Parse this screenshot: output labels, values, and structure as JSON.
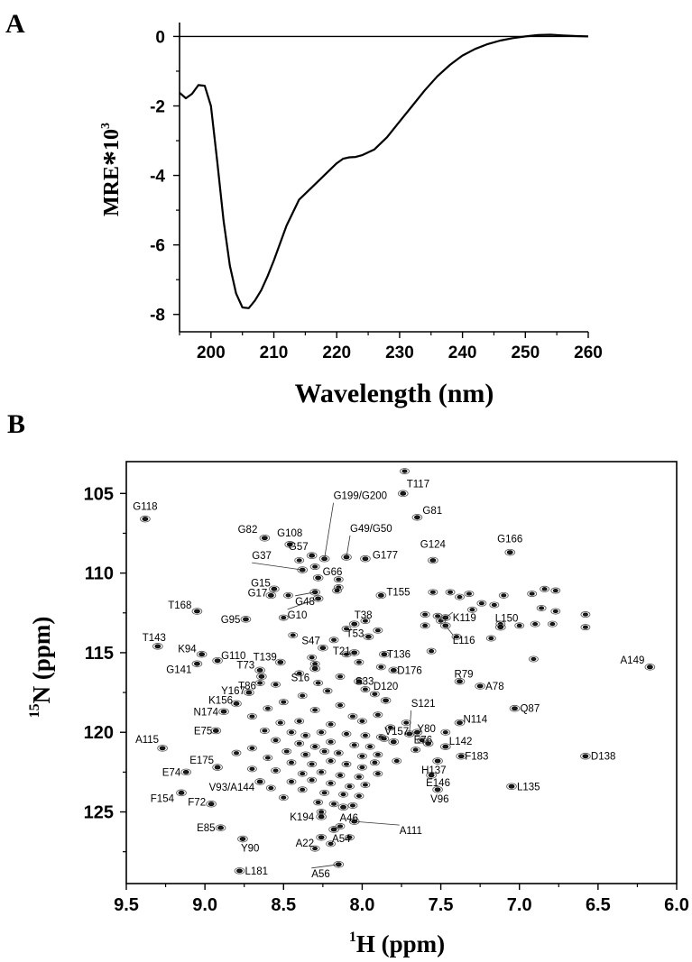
{
  "figure": {
    "panel_a_letter": "A",
    "panel_b_letter": "B"
  },
  "chart_data": [
    {
      "type": "line",
      "panel": "A",
      "xlabel": "Wavelength (nm)",
      "ylabel_main": "MRE",
      "ylabel_star": "*",
      "ylabel_sup": "3",
      "ylabel_base": "10",
      "xlim": [
        195,
        260
      ],
      "ylim": [
        -8.5,
        0.4
      ],
      "x_ticks": [
        200,
        210,
        220,
        230,
        240,
        250,
        260
      ],
      "y_ticks": [
        0,
        -2,
        -4,
        -6,
        -8
      ],
      "x_tick_labels": [
        "200",
        "210",
        "220",
        "230",
        "240",
        "250",
        "260"
      ],
      "y_tick_labels": [
        "0",
        "-2",
        "-4",
        "-6",
        "-8"
      ],
      "zero_line": true,
      "series": [
        {
          "x": [
            195,
            196,
            197,
            198,
            199,
            200,
            201,
            202,
            203,
            204,
            205,
            206,
            207,
            208,
            209,
            210,
            212,
            214,
            216,
            218,
            220,
            221,
            222,
            223,
            224,
            226,
            228,
            230,
            232,
            234,
            236,
            238,
            240,
            242,
            244,
            246,
            248,
            250,
            252,
            254,
            256,
            258,
            260
          ],
          "y": [
            -1.62,
            -1.78,
            -1.65,
            -1.4,
            -1.42,
            -2.0,
            -3.6,
            -5.3,
            -6.6,
            -7.4,
            -7.8,
            -7.82,
            -7.6,
            -7.3,
            -6.9,
            -6.45,
            -5.45,
            -4.7,
            -4.35,
            -4.0,
            -3.65,
            -3.52,
            -3.48,
            -3.47,
            -3.42,
            -3.25,
            -2.9,
            -2.45,
            -2.0,
            -1.55,
            -1.15,
            -0.82,
            -0.55,
            -0.36,
            -0.22,
            -0.12,
            -0.05,
            0.0,
            0.04,
            0.05,
            0.03,
            0.01,
            0.0
          ]
        }
      ]
    },
    {
      "type": "scatter",
      "panel": "B",
      "xlabel_sup": "1",
      "xlabel_main": "H (ppm)",
      "ylabel_sup": "15",
      "ylabel_main": "N (ppm)",
      "xlim": [
        9.5,
        6.0
      ],
      "ylim": [
        129.5,
        103.0
      ],
      "x_ticks": [
        9.5,
        9.0,
        8.5,
        8.0,
        7.5,
        7.0,
        6.5,
        6.0
      ],
      "y_ticks": [
        105,
        110,
        115,
        120,
        125
      ],
      "x_tick_labels": [
        "9.5",
        "9.0",
        "8.5",
        "8.0",
        "7.5",
        "7.0",
        "6.5",
        "6.0"
      ],
      "y_tick_labels": [
        "105",
        "110",
        "115",
        "120",
        "125"
      ],
      "assigned_peaks": [
        {
          "label": "T117",
          "x": 7.74,
          "y": 105.0
        },
        {
          "label": "G118",
          "x": 9.38,
          "y": 106.6
        },
        {
          "label": "G81",
          "x": 7.65,
          "y": 106.5
        },
        {
          "label": "G199/G200",
          "x": 8.24,
          "y": 109.1
        },
        {
          "label": "G108",
          "x": 8.46,
          "y": 108.2
        },
        {
          "label": "G82",
          "x": 8.62,
          "y": 107.8
        },
        {
          "label": "G49/G50",
          "x": 8.1,
          "y": 109.0
        },
        {
          "label": "G166",
          "x": 7.06,
          "y": 108.7
        },
        {
          "label": "G57",
          "x": 8.32,
          "y": 108.9
        },
        {
          "label": "G177",
          "x": 7.98,
          "y": 109.1
        },
        {
          "label": "G124",
          "x": 7.55,
          "y": 109.2
        },
        {
          "label": "G37",
          "x": 8.38,
          "y": 109.8
        },
        {
          "label": "G66",
          "x": 8.28,
          "y": 110.3
        },
        {
          "label": "G15",
          "x": 8.56,
          "y": 111.0
        },
        {
          "label": "G17",
          "x": 8.58,
          "y": 111.4
        },
        {
          "label": "G48",
          "x": 8.3,
          "y": 111.2
        },
        {
          "label": "T168",
          "x": 9.05,
          "y": 112.4
        },
        {
          "label": "G10",
          "x": 8.28,
          "y": 111.6
        },
        {
          "label": "T155",
          "x": 7.88,
          "y": 111.4
        },
        {
          "label": "K119",
          "x": 7.47,
          "y": 112.8
        },
        {
          "label": "G95",
          "x": 8.74,
          "y": 112.9
        },
        {
          "label": "T38",
          "x": 8.05,
          "y": 113.2
        },
        {
          "label": "L150",
          "x": 7.12,
          "y": 113.4
        },
        {
          "label": "L116",
          "x": 7.47,
          "y": 113.3
        },
        {
          "label": "T53",
          "x": 7.96,
          "y": 114.0
        },
        {
          "label": "T143",
          "x": 9.3,
          "y": 114.6
        },
        {
          "label": "S47",
          "x": 8.25,
          "y": 114.7
        },
        {
          "label": "K94",
          "x": 9.02,
          "y": 115.1
        },
        {
          "label": "T21",
          "x": 8.05,
          "y": 115.0
        },
        {
          "label": "T136",
          "x": 7.86,
          "y": 115.1
        },
        {
          "label": "A149",
          "x": 6.17,
          "y": 115.9
        },
        {
          "label": "G110",
          "x": 8.92,
          "y": 115.5
        },
        {
          "label": "T139",
          "x": 8.52,
          "y": 115.6
        },
        {
          "label": "T73",
          "x": 8.65,
          "y": 116.1
        },
        {
          "label": "G141",
          "x": 9.05,
          "y": 115.7
        },
        {
          "label": "S16",
          "x": 8.3,
          "y": 116.0
        },
        {
          "label": "T86",
          "x": 8.64,
          "y": 116.5
        },
        {
          "label": "D176",
          "x": 7.8,
          "y": 116.1
        },
        {
          "label": "R79",
          "x": 7.38,
          "y": 116.8
        },
        {
          "label": "S33",
          "x": 8.02,
          "y": 116.8
        },
        {
          "label": "A78",
          "x": 7.25,
          "y": 117.1
        },
        {
          "label": "Y167",
          "x": 8.72,
          "y": 117.5
        },
        {
          "label": "K156",
          "x": 8.8,
          "y": 118.2
        },
        {
          "label": "D120",
          "x": 7.85,
          "y": 118.0
        },
        {
          "label": "N174",
          "x": 8.88,
          "y": 118.7
        },
        {
          "label": "S121",
          "x": 7.7,
          "y": 120.1
        },
        {
          "label": "V157",
          "x": 7.8,
          "y": 120.6
        },
        {
          "label": "Q87",
          "x": 7.03,
          "y": 118.5
        },
        {
          "label": "N114",
          "x": 7.38,
          "y": 119.4
        },
        {
          "label": "E75",
          "x": 8.93,
          "y": 119.9
        },
        {
          "label": "Y80",
          "x": 7.65,
          "y": 120.0
        },
        {
          "label": "A115",
          "x": 9.27,
          "y": 121.0
        },
        {
          "label": "E76",
          "x": 7.58,
          "y": 120.7
        },
        {
          "label": "L142",
          "x": 7.47,
          "y": 120.9
        },
        {
          "label": "F183",
          "x": 7.37,
          "y": 121.5
        },
        {
          "label": "D138",
          "x": 6.58,
          "y": 121.5
        },
        {
          "label": "H137",
          "x": 7.52,
          "y": 121.8
        },
        {
          "label": "E175",
          "x": 8.92,
          "y": 122.2
        },
        {
          "label": "E74",
          "x": 9.12,
          "y": 122.5
        },
        {
          "label": "E146",
          "x": 7.56,
          "y": 122.7
        },
        {
          "label": "V93/A144",
          "x": 8.65,
          "y": 123.1
        },
        {
          "label": "L135",
          "x": 7.05,
          "y": 123.4
        },
        {
          "label": "V96",
          "x": 7.52,
          "y": 123.6
        },
        {
          "label": "F154",
          "x": 9.15,
          "y": 123.8
        },
        {
          "label": "F72",
          "x": 8.96,
          "y": 124.5
        },
        {
          "label": "A46",
          "x": 8.12,
          "y": 124.7
        },
        {
          "label": "K194",
          "x": 8.26,
          "y": 125.3
        },
        {
          "label": "A111",
          "x": 8.05,
          "y": 125.6
        },
        {
          "label": "E85",
          "x": 8.9,
          "y": 126.0
        },
        {
          "label": "Y90",
          "x": 8.76,
          "y": 126.7
        },
        {
          "label": "A54",
          "x": 8.18,
          "y": 126.1
        },
        {
          "label": "A22",
          "x": 8.26,
          "y": 126.6
        },
        {
          "label": "A56",
          "x": 8.15,
          "y": 128.3
        },
        {
          "label": "L181",
          "x": 8.78,
          "y": 128.7
        }
      ]
    }
  ]
}
